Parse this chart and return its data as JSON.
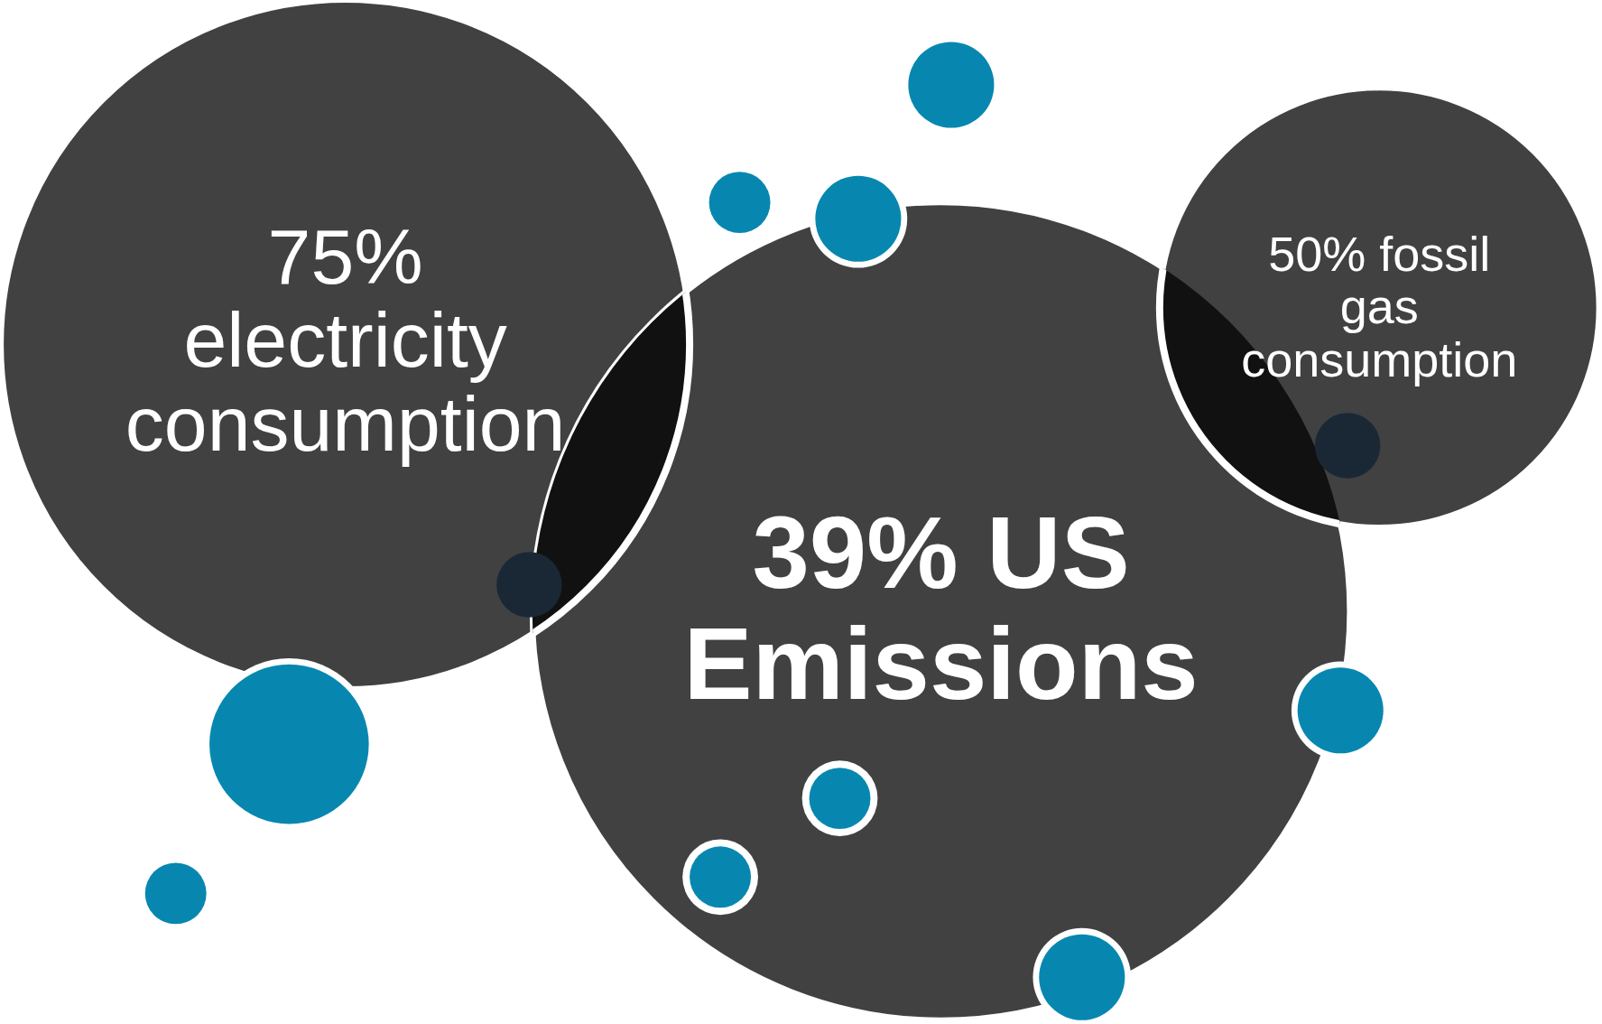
{
  "chart_data": {
    "type": "other",
    "categories": [
      "% electricity consumption",
      "% US Emissions",
      "% fossil gas consumption"
    ],
    "values": [
      75,
      39,
      50
    ],
    "data_labels": true
  }
}
